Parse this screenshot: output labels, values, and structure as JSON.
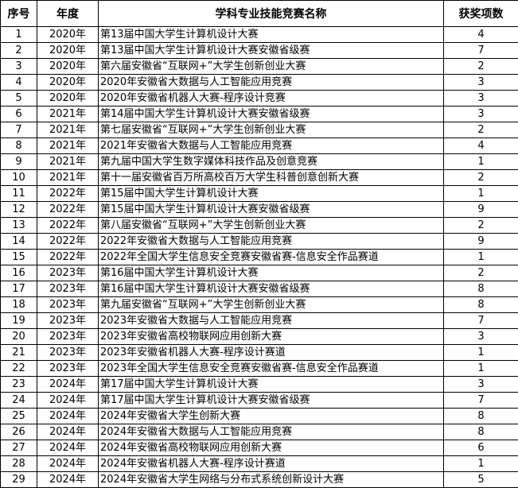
{
  "headers": [
    "序号",
    "年度",
    "学科专业技能竞赛名称",
    "获奖项数"
  ],
  "rows": [
    [
      "1",
      "2020年",
      "第13届中国大学生计算机设计大赛",
      "4"
    ],
    [
      "2",
      "2020年",
      "第13届中国大学生计算机设计大赛安徽省级赛",
      "7"
    ],
    [
      "3",
      "2020年",
      "第六届安徽省“互联网+”大学生创新创业大赛",
      "2"
    ],
    [
      "4",
      "2020年",
      "2020年安徽省大数据与人工智能应用竞赛",
      "3"
    ],
    [
      "5",
      "2020年",
      "2020年安徽省机器人大赛-程序设计竞赛",
      "3"
    ],
    [
      "6",
      "2021年",
      "第14届中国大学生计算机设计大赛安徽省级赛",
      "3"
    ],
    [
      "7",
      "2021年",
      "第七届安徽省“互联网+”大学生创新创业大赛",
      "2"
    ],
    [
      "8",
      "2021年",
      "2021年安徽省大数据与人工智能应用竞赛",
      "4"
    ],
    [
      "9",
      "2021年",
      "第九届中国大学生数字媒体科技作品及创意竞赛",
      "1"
    ],
    [
      "10",
      "2021年",
      "第十一届安徽省百万所高校百万大学生科普创意创新大赛",
      "2"
    ],
    [
      "11",
      "2022年",
      "第15届中国大学生计算机设计大赛",
      "1"
    ],
    [
      "12",
      "2022年",
      "第15届中国大学生计算机设计大赛安徽省级赛",
      "9"
    ],
    [
      "13",
      "2022年",
      "第八届安徽省“互联网+”大学生创新创业大赛",
      "2"
    ],
    [
      "14",
      "2022年",
      "2022年安徽省大数据与人工智能应用竞赛",
      "9"
    ],
    [
      "15",
      "2022年",
      "2022年全国大学生信息安全竞赛安徽省赛-信息安全作品赛道",
      "1"
    ],
    [
      "16",
      "2023年",
      "第16届中国大学生计算机设计大赛",
      "2"
    ],
    [
      "17",
      "2023年",
      "第16届中国大学生计算机设计大赛安徽省级赛",
      "8"
    ],
    [
      "18",
      "2023年",
      "第九届安徽省“互联网+”大学生创新创业大赛",
      "8"
    ],
    [
      "19",
      "2023年",
      "2023年安徽省大数据与人工智能应用竞赛",
      "7"
    ],
    [
      "20",
      "2023年",
      "2023年安徽省高校物联网应用创新大赛",
      "3"
    ],
    [
      "21",
      "2023年",
      "2023年安徽省机器人大赛-程序设计赛道",
      "1"
    ],
    [
      "22",
      "2023年",
      "2023年全国大学生信息安全竞赛安徽省赛-信息安全作品赛道",
      "1"
    ],
    [
      "23",
      "2024年",
      "第17届中国大学生计算机设计大赛",
      "3"
    ],
    [
      "24",
      "2024年",
      "第17届中国大学生计算机设计大赛安徽省级赛",
      "7"
    ],
    [
      "25",
      "2024年",
      "2024年安徽省大学生创新大赛",
      "8"
    ],
    [
      "26",
      "2024年",
      "2024年安徽省大数据与人工智能应用竞赛",
      "8"
    ],
    [
      "27",
      "2024年",
      "2024年安徽省高校物联网应用创新大赛",
      "6"
    ],
    [
      "28",
      "2024年",
      "2024年安徽省机器人大赛-程序设计赛道",
      "1"
    ],
    [
      "29",
      "2024年",
      "2024年安徽省大学生网络与分布式系统创新设计大赛",
      "5"
    ]
  ]
}
